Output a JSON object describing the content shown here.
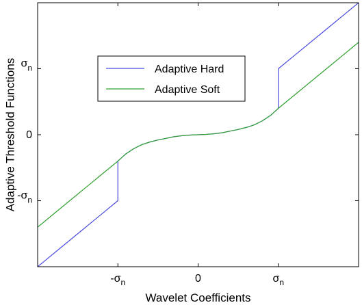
{
  "chart_data": {
    "type": "line",
    "title": "",
    "xlabel": "Wavelet Coefficients",
    "ylabel": "Adaptive Threshold Functions",
    "xlim": [
      -2,
      2
    ],
    "ylim": [
      -2,
      2
    ],
    "x_ticks": [
      {
        "value": -1,
        "base": "-σ",
        "sub": "n"
      },
      {
        "value": 0,
        "base": "0",
        "sub": ""
      },
      {
        "value": 1,
        "base": "σ",
        "sub": "n"
      }
    ],
    "y_ticks": [
      {
        "value": -1,
        "base": "-σ",
        "sub": "n"
      },
      {
        "value": 0,
        "base": "0",
        "sub": ""
      },
      {
        "value": 1,
        "base": "σ",
        "sub": "n"
      }
    ],
    "grid": false,
    "legend_position": "upper-left-center",
    "series": [
      {
        "name": "Adaptive Hard",
        "color": "#4a4adf",
        "x": [
          -2,
          -1.6,
          -1.2,
          -1.0001,
          -1.0,
          -0.9,
          -0.8,
          -0.7,
          -0.6,
          -0.5,
          -0.4,
          -0.3,
          -0.2,
          -0.1,
          0,
          0.1,
          0.2,
          0.3,
          0.4,
          0.5,
          0.6,
          0.7,
          0.8,
          0.9,
          1.0,
          1.0001,
          1.2,
          1.6,
          2
        ],
        "y": [
          -2,
          -1.6,
          -1.2,
          -1.0,
          -0.4,
          -0.29,
          -0.21,
          -0.15,
          -0.11,
          -0.08,
          -0.055,
          -0.03,
          -0.015,
          -0.005,
          0,
          0.005,
          0.015,
          0.03,
          0.055,
          0.08,
          0.11,
          0.15,
          0.21,
          0.29,
          0.4,
          1.0,
          1.2,
          1.6,
          2
        ]
      },
      {
        "name": "Adaptive Soft",
        "color": "#2ea02e",
        "x": [
          -2,
          -1.6,
          -1.2,
          -1.0,
          -0.9,
          -0.8,
          -0.7,
          -0.6,
          -0.5,
          -0.4,
          -0.3,
          -0.2,
          -0.1,
          0,
          0.1,
          0.2,
          0.3,
          0.4,
          0.5,
          0.6,
          0.7,
          0.8,
          0.9,
          1.0,
          1.2,
          1.6,
          2
        ],
        "y": [
          -1.4,
          -1.0,
          -0.6,
          -0.4,
          -0.29,
          -0.21,
          -0.15,
          -0.11,
          -0.08,
          -0.055,
          -0.03,
          -0.015,
          -0.005,
          0,
          0.005,
          0.015,
          0.03,
          0.055,
          0.08,
          0.11,
          0.15,
          0.21,
          0.29,
          0.4,
          0.6,
          1.0,
          1.4
        ]
      }
    ]
  }
}
